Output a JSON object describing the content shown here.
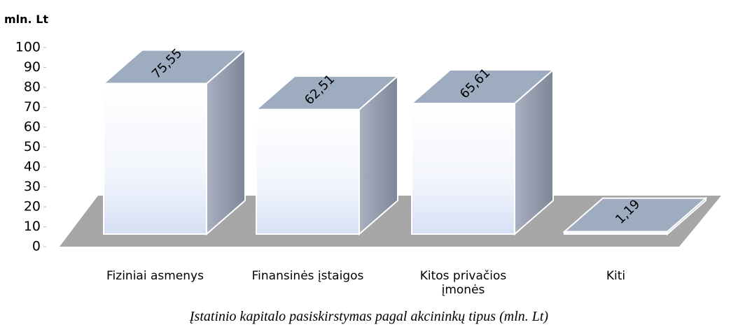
{
  "chart_data": {
    "type": "bar3d",
    "y_label": "mln. Lt",
    "caption": "Įstatinio kapitalo pasiskirstymas pagal akcininkų tipus (mln. Lt)",
    "categories": [
      "Fiziniai asmenys",
      "Finansinės įstaigos",
      "Kitos privačios įmonės",
      "Kiti"
    ],
    "values": [
      75.55,
      62.51,
      65.61,
      1.19
    ],
    "value_labels": [
      "75,55",
      "62,51",
      "65,61",
      "1,19"
    ],
    "ylim": [
      0,
      100
    ],
    "yticks": [
      0,
      10,
      20,
      30,
      40,
      50,
      60,
      70,
      80,
      90,
      100
    ],
    "grid": false
  }
}
